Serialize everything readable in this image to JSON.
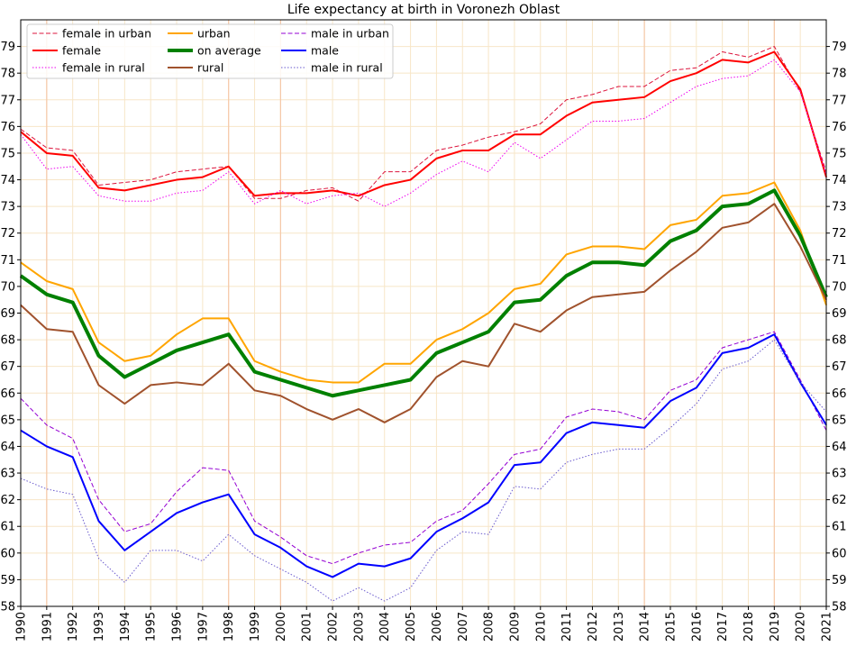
{
  "chart_data": {
    "type": "line",
    "title": "Life expectancy at birth in Voronezh Oblast",
    "xlabel": "",
    "ylabel": "",
    "xlim": [
      1990,
      2021
    ],
    "ylim": [
      58,
      80
    ],
    "x": [
      1990,
      1991,
      1992,
      1993,
      1994,
      1995,
      1996,
      1997,
      1998,
      1999,
      2000,
      2001,
      2002,
      2003,
      2004,
      2005,
      2006,
      2007,
      2008,
      2009,
      2010,
      2011,
      2012,
      2013,
      2014,
      2015,
      2016,
      2017,
      2018,
      2019,
      2020,
      2021
    ],
    "x_tick_labels": [
      "1990",
      "1991",
      "1992",
      "1993",
      "1994",
      "1995",
      "1996",
      "1997",
      "1998",
      "1999",
      "2000",
      "2001",
      "2002",
      "2003",
      "2004",
      "2005",
      "2006",
      "2007",
      "2008",
      "2009",
      "2010",
      "2011",
      "2012",
      "2013",
      "2014",
      "2015",
      "2016",
      "2017",
      "2018",
      "2019",
      "2020",
      "2021"
    ],
    "y_ticks": [
      58,
      59,
      60,
      61,
      62,
      63,
      64,
      65,
      66,
      67,
      68,
      69,
      70,
      71,
      72,
      73,
      74,
      75,
      76,
      77,
      78,
      79
    ],
    "y_tick_labels": [
      "58",
      "59",
      "60",
      "61",
      "62",
      "63",
      "64",
      "65",
      "66",
      "67",
      "68",
      "69",
      "70",
      "71",
      "72",
      "73",
      "74",
      "75",
      "76",
      "77",
      "78",
      "79"
    ],
    "grid": true,
    "highlight_years": [
      1991,
      1998,
      2000,
      2014,
      2019
    ],
    "legend_position": "top-left",
    "series": [
      {
        "name": "female in urban",
        "color": "#dc143c",
        "style": "dashed",
        "width": 1,
        "values": [
          75.9,
          75.2,
          75.1,
          73.8,
          73.9,
          74.0,
          74.3,
          74.4,
          74.5,
          73.3,
          73.3,
          73.6,
          73.7,
          73.2,
          74.3,
          74.3,
          75.1,
          75.3,
          75.6,
          75.8,
          76.1,
          77.0,
          77.2,
          77.5,
          77.5,
          78.1,
          78.2,
          78.8,
          78.6,
          79.0,
          77.3,
          74.3
        ]
      },
      {
        "name": "female",
        "color": "#ff0000",
        "style": "solid",
        "width": 2,
        "values": [
          75.8,
          75.0,
          74.9,
          73.7,
          73.6,
          73.8,
          74.0,
          74.1,
          74.5,
          73.4,
          73.5,
          73.5,
          73.6,
          73.4,
          73.8,
          74.0,
          74.8,
          75.1,
          75.1,
          75.7,
          75.7,
          76.4,
          76.9,
          77.0,
          77.1,
          77.7,
          78.0,
          78.5,
          78.4,
          78.8,
          77.4,
          74.1
        ]
      },
      {
        "name": "female in rural",
        "color": "#ee00ee",
        "style": "dotted",
        "width": 1,
        "values": [
          75.7,
          74.4,
          74.5,
          73.4,
          73.2,
          73.2,
          73.5,
          73.6,
          74.3,
          73.1,
          73.6,
          73.1,
          73.4,
          73.5,
          73.0,
          73.5,
          74.2,
          74.7,
          74.3,
          75.4,
          74.8,
          75.5,
          76.2,
          76.2,
          76.3,
          76.9,
          77.5,
          77.8,
          77.9,
          78.5,
          77.3,
          74.2
        ]
      },
      {
        "name": "urban",
        "color": "#ffa500",
        "style": "solid",
        "width": 2,
        "values": [
          70.9,
          70.2,
          69.9,
          67.9,
          67.2,
          67.4,
          68.2,
          68.8,
          68.8,
          67.2,
          66.8,
          66.5,
          66.4,
          66.4,
          67.1,
          67.1,
          68.0,
          68.4,
          69.0,
          69.9,
          70.1,
          71.2,
          71.5,
          71.5,
          71.4,
          72.3,
          72.5,
          73.4,
          73.5,
          73.9,
          72.1,
          69.3
        ]
      },
      {
        "name": "on average",
        "color": "#008000",
        "style": "solid",
        "width": 4,
        "values": [
          70.4,
          69.7,
          69.4,
          67.4,
          66.6,
          67.1,
          67.6,
          67.9,
          68.2,
          66.8,
          66.5,
          66.2,
          65.9,
          66.1,
          66.3,
          66.5,
          67.5,
          67.9,
          68.3,
          69.4,
          69.5,
          70.4,
          70.9,
          70.9,
          70.8,
          71.7,
          72.1,
          73.0,
          73.1,
          73.6,
          71.9,
          69.6
        ]
      },
      {
        "name": "rural",
        "color": "#a0522d",
        "style": "solid",
        "width": 2,
        "values": [
          69.3,
          68.4,
          68.3,
          66.3,
          65.6,
          66.3,
          66.4,
          66.3,
          67.1,
          66.1,
          65.9,
          65.4,
          65.0,
          65.4,
          64.9,
          65.4,
          66.6,
          67.2,
          67.0,
          68.6,
          68.3,
          69.1,
          69.6,
          69.7,
          69.8,
          70.6,
          71.3,
          72.2,
          72.4,
          73.1,
          71.5,
          69.5
        ]
      },
      {
        "name": "male in urban",
        "color": "#9400d3",
        "style": "dashed",
        "width": 1,
        "values": [
          65.8,
          64.8,
          64.3,
          62.0,
          60.8,
          61.1,
          62.3,
          63.2,
          63.1,
          61.2,
          60.6,
          59.9,
          59.6,
          60.0,
          60.3,
          60.4,
          61.2,
          61.6,
          62.6,
          63.7,
          63.9,
          65.1,
          65.4,
          65.3,
          65.0,
          66.1,
          66.5,
          67.7,
          68.0,
          68.3,
          66.5,
          64.6
        ]
      },
      {
        "name": "male",
        "color": "#0000ff",
        "style": "solid",
        "width": 2,
        "values": [
          64.6,
          64.0,
          63.6,
          61.2,
          60.1,
          60.8,
          61.5,
          61.9,
          62.2,
          60.7,
          60.2,
          59.5,
          59.1,
          59.6,
          59.5,
          59.8,
          60.8,
          61.3,
          61.9,
          63.3,
          63.4,
          64.5,
          64.9,
          64.8,
          64.7,
          65.7,
          66.2,
          67.5,
          67.7,
          68.2,
          66.4,
          64.8
        ]
      },
      {
        "name": "male in rural",
        "color": "#6a5acd",
        "style": "dotted",
        "width": 1,
        "values": [
          62.8,
          62.4,
          62.2,
          59.8,
          58.9,
          60.1,
          60.1,
          59.7,
          60.7,
          59.9,
          59.4,
          58.9,
          58.2,
          58.7,
          58.2,
          58.7,
          60.1,
          60.8,
          60.7,
          62.5,
          62.4,
          63.4,
          63.7,
          63.9,
          63.9,
          64.7,
          65.6,
          66.9,
          67.2,
          68.0,
          66.4,
          65.3
        ]
      }
    ]
  }
}
